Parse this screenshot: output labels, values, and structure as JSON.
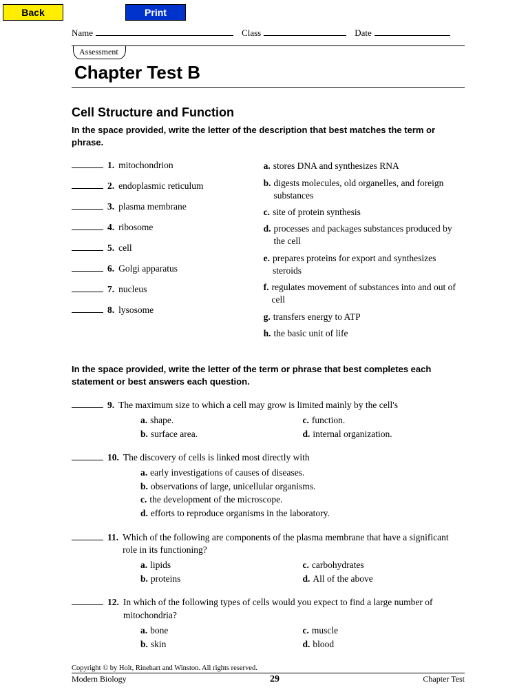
{
  "nav": {
    "back": "Back",
    "print": "Print"
  },
  "header": {
    "name_label": "Name",
    "class_label": "Class",
    "date_label": "Date"
  },
  "assessment_label": "Assessment",
  "chapter_title": "Chapter Test B",
  "section_title": "Cell Structure and Function",
  "instructions1": "In the space provided, write the letter of the description that best matches the term or phrase.",
  "match_left": [
    {
      "num": "1.",
      "term": "mitochondrion"
    },
    {
      "num": "2.",
      "term": "endoplasmic reticulum"
    },
    {
      "num": "3.",
      "term": "plasma membrane"
    },
    {
      "num": "4.",
      "term": "ribosome"
    },
    {
      "num": "5.",
      "term": "cell"
    },
    {
      "num": "6.",
      "term": "Golgi apparatus"
    },
    {
      "num": "7.",
      "term": "nucleus"
    },
    {
      "num": "8.",
      "term": "lysosome"
    }
  ],
  "match_right": [
    {
      "letter": "a.",
      "desc": "stores DNA and synthesizes RNA"
    },
    {
      "letter": "b.",
      "desc": "digests molecules, old organelles, and foreign substances"
    },
    {
      "letter": "c.",
      "desc": "site of protein synthesis"
    },
    {
      "letter": "d.",
      "desc": "processes and packages substances produced by the cell"
    },
    {
      "letter": "e.",
      "desc": "prepares proteins for export and synthesizes steroids"
    },
    {
      "letter": "f.",
      "desc": "regulates movement of substances into and out of cell"
    },
    {
      "letter": "g.",
      "desc": "transfers energy to ATP"
    },
    {
      "letter": "h.",
      "desc": "the basic unit of life"
    }
  ],
  "instructions2": "In the space provided, write the letter of the term or phrase that best completes each statement or best answers each question.",
  "mc": [
    {
      "num": "9.",
      "text": "The maximum size to which a cell may grow is limited mainly by the cell's",
      "layout": "2col",
      "opts": [
        {
          "l": "a.",
          "t": "shape."
        },
        {
          "l": "c.",
          "t": "function."
        },
        {
          "l": "b.",
          "t": "surface area."
        },
        {
          "l": "d.",
          "t": "internal organization."
        }
      ]
    },
    {
      "num": "10.",
      "text": "The discovery of cells is linked most directly with",
      "layout": "1col",
      "opts": [
        {
          "l": "a.",
          "t": "early investigations of causes of diseases."
        },
        {
          "l": "b.",
          "t": "observations of large, unicellular organisms."
        },
        {
          "l": "c.",
          "t": "the development of the microscope."
        },
        {
          "l": "d.",
          "t": "efforts to reproduce organisms in the laboratory."
        }
      ]
    },
    {
      "num": "11.",
      "text": "Which of the following are components of the plasma membrane that have a significant role in its functioning?",
      "layout": "2col",
      "opts": [
        {
          "l": "a.",
          "t": "lipids"
        },
        {
          "l": "c.",
          "t": "carbohydrates"
        },
        {
          "l": "b.",
          "t": "proteins"
        },
        {
          "l": "d.",
          "t": "All of the above"
        }
      ]
    },
    {
      "num": "12.",
      "text": "In which of the following types of cells would you expect to find a large number of mitochondria?",
      "layout": "2col",
      "opts": [
        {
          "l": "a.",
          "t": "bone"
        },
        {
          "l": "c.",
          "t": "muscle"
        },
        {
          "l": "b.",
          "t": "skin"
        },
        {
          "l": "d.",
          "t": "blood"
        }
      ]
    }
  ],
  "footer": {
    "copyright": "Copyright © by Holt, Rinehart and Winston. All rights reserved.",
    "book": "Modern Biology",
    "page": "29",
    "label": "Chapter Test"
  }
}
